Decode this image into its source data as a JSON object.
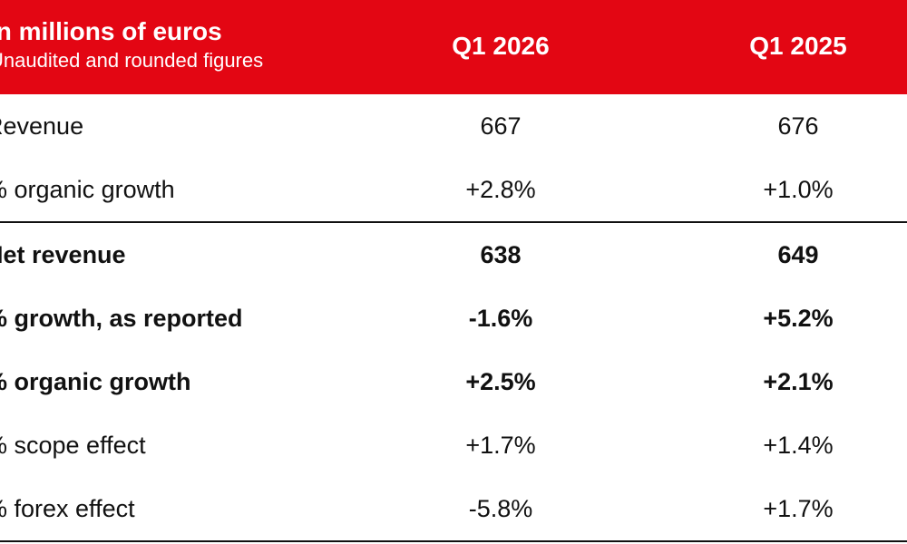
{
  "header": {
    "title": "In millions of euros",
    "subtitle": "Unaudited and rounded figures",
    "col_a": "Q1 2026",
    "col_b": "Q1 2025"
  },
  "rows": [
    {
      "label": "Revenue",
      "a": "667",
      "b": "676",
      "bold": false
    },
    {
      "label": "% organic growth",
      "a": "+2.8%",
      "b": "+1.0%",
      "bold": false
    },
    {
      "label": "Net revenue",
      "a": "638",
      "b": "649",
      "bold": true
    },
    {
      "label": "% growth, as reported",
      "a": "-1.6%",
      "b": "+5.2%",
      "bold": true
    },
    {
      "label": "% organic growth",
      "a": "+2.5%",
      "b": "+2.1%",
      "bold": true
    },
    {
      "label": "% scope effect",
      "a": "+1.7%",
      "b": "+1.4%",
      "bold": false
    },
    {
      "label": "% forex effect",
      "a": "-5.8%",
      "b": "+1.7%",
      "bold": false
    }
  ],
  "colors": {
    "header_bg": "#e30613",
    "header_text": "#ffffff",
    "text": "#111111"
  }
}
